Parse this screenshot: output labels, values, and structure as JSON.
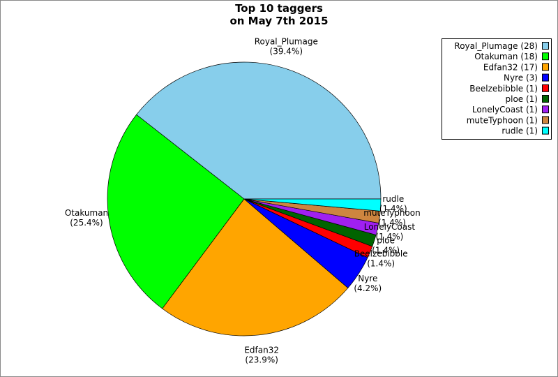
{
  "chart_data": {
    "type": "pie",
    "title": "Top 10 taggers",
    "subtitle": "on May 7th 2015",
    "categories": [
      "Royal_Plumage",
      "Otakuman",
      "Edfan32",
      "Nyre",
      "Beelzebibble",
      "ploe",
      "LonelyCoast",
      "muteTyphoon",
      "rudle"
    ],
    "values": [
      28,
      18,
      17,
      3,
      1,
      1,
      1,
      1,
      1
    ],
    "percent_labels": [
      "(39.4%)",
      "(25.4%)",
      "(23.9%)",
      "(4.2%)",
      "(1.4%)",
      "(1.4%)",
      "(1.4%)",
      "(1.4%)",
      "(1.4%)"
    ],
    "legend_labels": [
      "Royal_Plumage (28)",
      "Otakuman (18)",
      "Edfan32 (17)",
      "Nyre (3)",
      "Beelzebibble (1)",
      "ploe (1)",
      "LonelyCoast (1)",
      "muteTyphoon (1)",
      "rudle (1)"
    ],
    "colors": [
      "#87ceeb",
      "#00ff00",
      "#ffa500",
      "#0000ff",
      "#ff0000",
      "#006400",
      "#a020f0",
      "#cd853f",
      "#00ffff"
    ],
    "legend": "top-right"
  }
}
